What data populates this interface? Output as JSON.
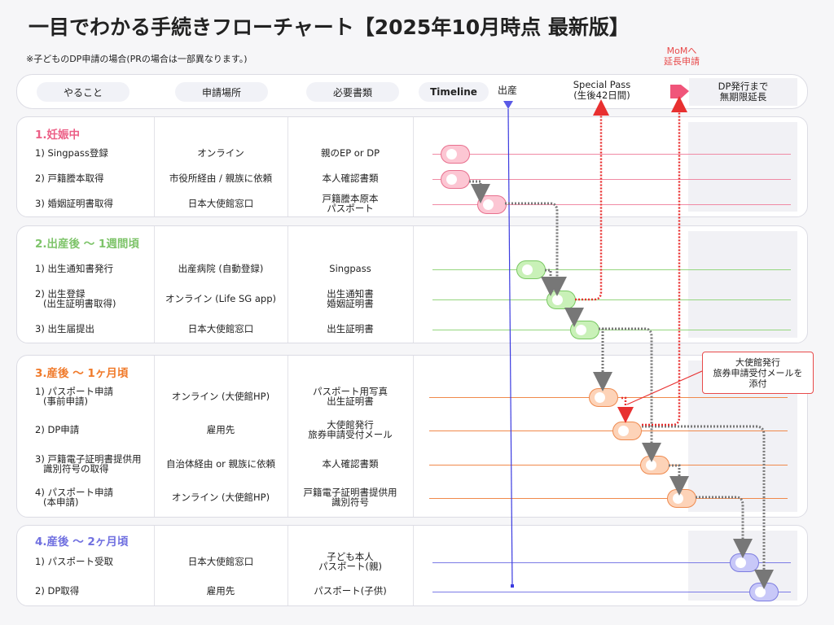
{
  "title": "一目でわかる手続きフローチャート【2025年10月時点 最新版】",
  "note": "※子どものDP申請の場合(PRの場合は一部異なります。)",
  "mom_label": [
    "MoMへ",
    "延長申請"
  ],
  "header": {
    "col_todo": "やること",
    "col_place": "申請場所",
    "col_docs": "必要書類",
    "col_timeline": "Timeline",
    "birth": "出産",
    "special_pass": [
      "Special Pass",
      "(生後42日間)"
    ],
    "dp_extension": [
      "DP発行まで",
      "無期限延長"
    ]
  },
  "colors": {
    "pink": "#ec5f86",
    "green": "#7ec46a",
    "orange": "#f07a2a",
    "purple": "#7070e0",
    "red": "#e84a4a",
    "timeline_axis": "#3b3be0"
  },
  "sections": [
    {
      "title": "1.妊娠中",
      "rows": [
        {
          "todo": [
            "1) Singpass登録"
          ],
          "place": [
            "オンライン"
          ],
          "docs": [
            "親のEP or DP"
          ]
        },
        {
          "todo": [
            "2) 戸籍謄本取得"
          ],
          "place": [
            "市役所経由 / 親族に依頼"
          ],
          "docs": [
            "本人確認書類"
          ]
        },
        {
          "todo": [
            "3) 婚姻証明書取得"
          ],
          "place": [
            "日本大使館窓口"
          ],
          "docs": [
            "戸籍謄本原本",
            "パスポート"
          ]
        }
      ]
    },
    {
      "title": "2.出産後 〜 1週間頃",
      "rows": [
        {
          "todo": [
            "1) 出生通知書発行"
          ],
          "place": [
            "出産病院 (自動登録)"
          ],
          "docs": [
            "Singpass"
          ]
        },
        {
          "todo": [
            "2) 出生登録",
            "(出生証明書取得)"
          ],
          "place": [
            "オンライン  (Life SG app)"
          ],
          "docs": [
            "出生通知書",
            "婚姻証明書"
          ]
        },
        {
          "todo": [
            "3) 出生届提出"
          ],
          "place": [
            "日本大使館窓口"
          ],
          "docs": [
            "出生証明書"
          ]
        }
      ]
    },
    {
      "title": "3.産後 〜 1ヶ月頃",
      "rows": [
        {
          "todo": [
            "1) パスポート申請",
            "(事前申請)"
          ],
          "place": [
            "オンライン (大使館HP)"
          ],
          "docs": [
            "パスポート用写真",
            "出生証明書"
          ]
        },
        {
          "todo": [
            "2) DP申請"
          ],
          "place": [
            "雇用先"
          ],
          "docs": [
            "大使館発行",
            "旅券申請受付メール"
          ]
        },
        {
          "todo": [
            "3) 戸籍電子証明書提供用",
            "識別符号の取得"
          ],
          "place": [
            "自治体経由 or 親族に依頼"
          ],
          "docs": [
            "本人確認書類"
          ]
        },
        {
          "todo": [
            "4) パスポート申請",
            "(本申請)"
          ],
          "place": [
            "オンライン (大使館HP)"
          ],
          "docs": [
            "戸籍電子証明書提供用",
            "識別符号"
          ]
        }
      ]
    },
    {
      "title": "4.産後 〜 2ヶ月頃",
      "rows": [
        {
          "todo": [
            "1) パスポート受取"
          ],
          "place": [
            "日本大使館窓口"
          ],
          "docs": [
            "子ども本人",
            "パスポート(親)"
          ]
        },
        {
          "todo": [
            "2) DP取得"
          ],
          "place": [
            "雇用先"
          ],
          "docs": [
            "パスポート(子供)"
          ]
        }
      ]
    }
  ],
  "callout": [
    "大使館発行",
    "旅券申請受付メールを",
    "添付"
  ]
}
